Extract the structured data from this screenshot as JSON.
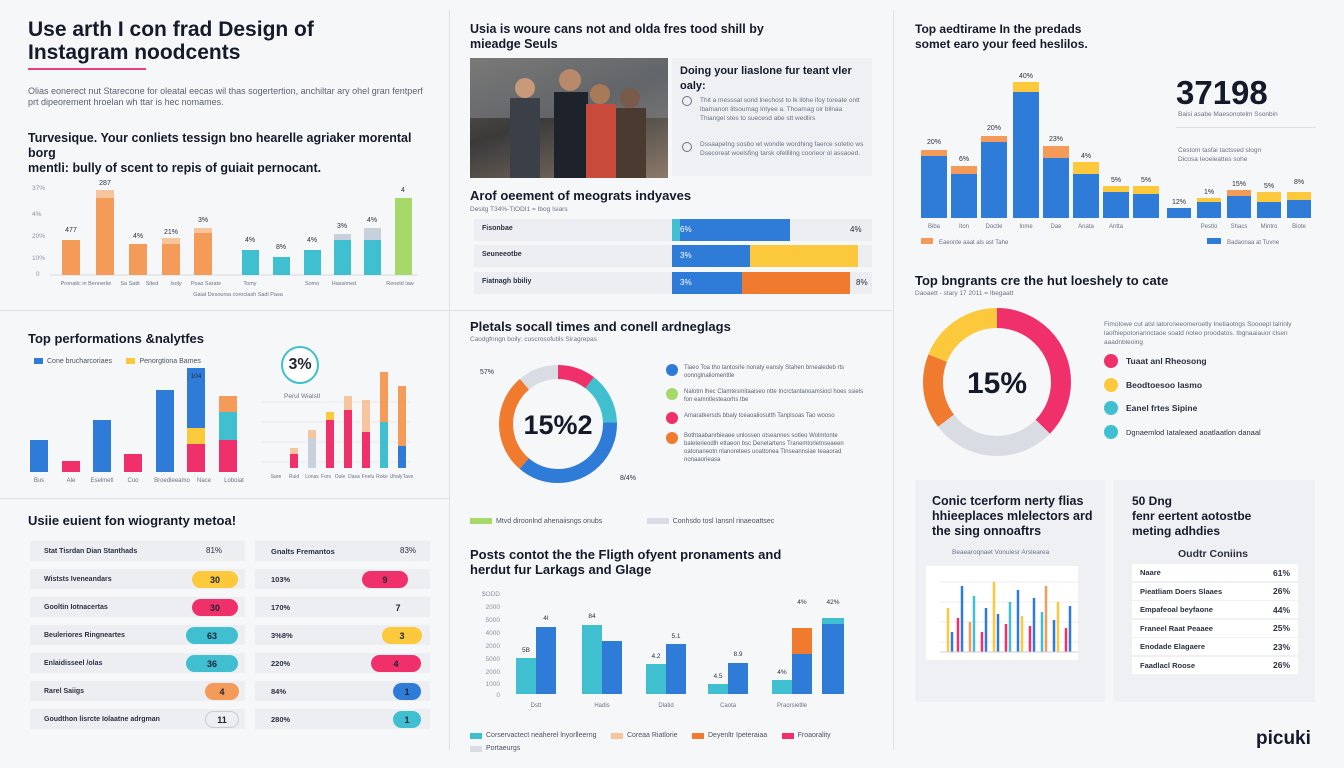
{
  "header": {
    "title_line1": "Use arth I con frad Design of",
    "title_line2": "Instagram noodcents",
    "intro": "Olias eonerect nut Starecone for oleatal eecas wil thas sogertertion, anchiltar ary ohel gran fentperf prt dipeorement hroelan wh ttar is hec nomames."
  },
  "colA": {
    "chart1": {
      "subtitle_line1": "Turvesique. Your conliets tessign bno hearelle agriaker morental borg",
      "subtitle_line2": "mentli: bully of scent to repis of guiait pernocant.",
      "y_ticks": [
        "",
        "37%",
        "4%",
        "20%",
        "10%",
        "0"
      ],
      "labels": [
        "477",
        "287",
        "4%",
        "21%",
        "3%",
        "4%",
        "8%",
        "4%",
        "3%",
        "4%",
        "4"
      ],
      "x_labels": [
        "Pronatic in Bennerlie",
        "Sa Satit",
        "Sited",
        "Isoly",
        "Poas Sarate",
        "Tomy",
        "Somo",
        "Hassimed",
        "Reoeld Iaw"
      ],
      "caption": "Gaial Desoursa coroclash Sadi Pasa",
      "colors": {
        "orange": "#f49b5a",
        "teal": "#3fbfd0",
        "green": "#a6d96a"
      }
    },
    "perf": {
      "title": "Top performations &nalytfes",
      "legend": [
        "Cone brucharcoriaes",
        "Penorgtiona Bames"
      ],
      "labels": [
        "",
        "",
        "",
        "",
        "",
        "",
        "",
        "104"
      ],
      "x_labels": [
        "Bus",
        "Ale",
        "Eselmetl",
        "Cuo",
        "Broedleeamo",
        "Nace",
        "Loboiat"
      ],
      "gauge_value": "3%",
      "gauge_caption": "Perul Wialstl",
      "mini_x": [
        "Sare",
        "Ruid",
        "Lonas",
        "Fors",
        "Oule",
        "Dasa",
        "Fnelu",
        "Roke",
        "Uhaly",
        "Tave"
      ]
    },
    "table": {
      "title": "Usiie euient fon wiogranty metoa!",
      "rows": [
        {
          "label": "Stat Tisrdan Dian Stanthads",
          "val1": "81%",
          "label2": "Gnalts Fremantos",
          "val2": "83%"
        },
        {
          "label": "Wiststs Iveneandars",
          "val1": "30",
          "label2": "103%",
          "val2": "9"
        },
        {
          "label": "Gooltin Iotnacertas",
          "val1": "30",
          "label2": "170%",
          "val2": "7"
        },
        {
          "label": "Beuleriores Ringneartes",
          "val1": "63",
          "label2": "3%8%",
          "val2": "3"
        },
        {
          "label": "Enlaidisseel /olas",
          "val1": "36",
          "label2": "220%",
          "val2": "4"
        },
        {
          "label": "Rarel Saiigs",
          "val1": "4",
          "label2": "84%",
          "val2": "1"
        },
        {
          "label": "Goudthon lisrcte Iolaatne adrgman",
          "val1": "11",
          "label2": "280%",
          "val2": "1"
        }
      ]
    }
  },
  "colB": {
    "card": {
      "title_line1": "Usia is woure cans not and olda fres tood shill by",
      "title_line2": "mieadge Seuls",
      "sub": "Doing your liaslone fur teant vler",
      "sub2": "oaly:",
      "bullet1": "Thit a messsal sond lnechost to lk libhe ifoy toreate ontt lbamanon litsoumag Intyee a. Thoamag oir bilnaa Thiangel stes to suecesd abe stt wedlirs",
      "bullet2": "Dssaapetng sosbo wt wondle wordhing faerce sotetio ws Dsecoreat woelsfing tarsk ofelllilng coorieor ol assaoed."
    },
    "bars": {
      "title": "Arof oeement of meograts indyaves",
      "sub": "Desitg T34%-TIODI1 = Ibog Isiars",
      "rows": [
        {
          "label": "Fisonbae",
          "left": "6%",
          "right": "4%"
        },
        {
          "label": "Seuneeotbe",
          "left": "3%",
          "right": ""
        },
        {
          "label": "Fiatnagh bbiliy",
          "left": "3%",
          "right": "8%"
        }
      ]
    },
    "donut": {
      "title": "Pletals socall times and conell ardneglags",
      "sub": "Caodgfnngn boily: cuscrosofutils Siragrepas",
      "center": "15%2",
      "top_label": "57%",
      "bottom_label": "8/4%",
      "items": [
        "Tiaeo Toa tho tantosrle nonaty eansly Stahen brnealedeb rts oonnglnaliomenttle",
        "Nalotm lhec Clamtesmitaaiseo ntte Incrctantanoamsiocl hoes ssiels fon eamntlesteaorhs tbe",
        "Amaratkersds bbaly tceaoaliosutth Tanplsoas Tao wooso",
        "Bothtaabanrbieaee unlossen otseannes sotleo Wolmtonte baleterieodlh ettaeon bsc Denetartens Tranemtorletnseaeen oatonaneotn nlanoretees uoattonea Tlnseannsiae teaaorad nonaaorieasa"
      ],
      "legend": [
        "Mtvd diroonlnd ahenaiisngs onubs",
        "Conhsdo tosl Iansnl rinaeoattsec"
      ]
    },
    "grouped": {
      "title_line1": "Posts contot the the Fligth ofyent pronaments and",
      "title_line2": "herdut fur Larkags and Glage",
      "y_ticks": [
        "$ODD",
        "2000",
        "5000",
        "4000",
        "2000",
        "5000",
        "2000",
        "1000",
        "0"
      ],
      "labels": [
        "5B",
        "4I",
        "84",
        "5.1",
        "4.2",
        "8.9",
        "4.5",
        "4%",
        "4%",
        "42%"
      ],
      "x_labels": [
        "Dstt",
        "Hadis",
        "Dlatid",
        "Caota",
        "Praorsietlle"
      ],
      "legend": [
        "Corservactect neaherel lnyorlleerng",
        "Coreaa Riatlorie",
        "Deyenltr Ipeteraiaa",
        "Froaorality",
        "Portaeurgs"
      ]
    }
  },
  "colC": {
    "top": {
      "title_line1": "Top aedtirame In the predads",
      "title_line2": "somet earo your feed heslilos.",
      "bar_labels": [
        "20%",
        "6%",
        "20%",
        "40%",
        "23%",
        "4%",
        "5%",
        "5%"
      ],
      "bar_labels2": [
        "12%",
        "1%",
        "15%",
        "5%",
        "8%"
      ],
      "x_labels": [
        "Biba",
        "Iton",
        "Doctle",
        "Inme",
        "Dae",
        "Anata",
        "Antta"
      ],
      "x_labels2": [
        "Pestlo",
        "Shacs",
        "Mintro",
        "Biote"
      ],
      "legend1": "Eaeonte aaat als ast Tahe",
      "legend2": "Badaonaa at Tuvne",
      "big_number": "37198",
      "big_caption": "Baisi asabe Maesonotelm Ssonbin",
      "desc": "Cestom tasfai tactssed slogn Dicosa Ieoeleattes sohe"
    },
    "ring": {
      "title": "Top bngrants cre the hut loeshely to cate",
      "sub": "Daoaett - stary 17 2011 = Ibegaatt",
      "center": "15%",
      "desc": "Fimotowe cut atsl latorcneeomeroetly Inetiaotngs Soooepl talrinly laofhiepotonannctaoe soatd noteo proodatos. Ibgnaaiauor clsen aaadnbleoing",
      "items": [
        "Tuaat anl Rheosong",
        "Beodtoesoo lasmo",
        "Eanel frtes Sipine",
        "Dgnaemlod Iataleaed aoatlaatlon danaal"
      ]
    },
    "card1": {
      "title_line1": "Conic tcerform nerty flias",
      "title_line2": "hhieeplaces mlelectors ard",
      "title_line3": "the sing onnoaftrs",
      "sub": "Beaearoqnaet Vonuiesr Arslearea"
    },
    "card2": {
      "title_line1": "50 Dng",
      "title_line2": "fenr eertent aotostbe",
      "title_line3": "meting adhdies",
      "table_title": "Oudtr Coniins",
      "rows": [
        {
          "label": "Naare",
          "val": "61%"
        },
        {
          "label": "Pieatliam Doers Slaaes",
          "val": "26%"
        },
        {
          "label": "Empafeoal beyfaone",
          "val": "44%"
        },
        {
          "label": "Franeel Raat Peaaee",
          "val": "25%"
        },
        {
          "label": "Enodade Elagaere",
          "val": "23%"
        },
        {
          "label": "Faadlacl Roose",
          "val": "26%"
        }
      ]
    },
    "logo": "picuki"
  }
}
